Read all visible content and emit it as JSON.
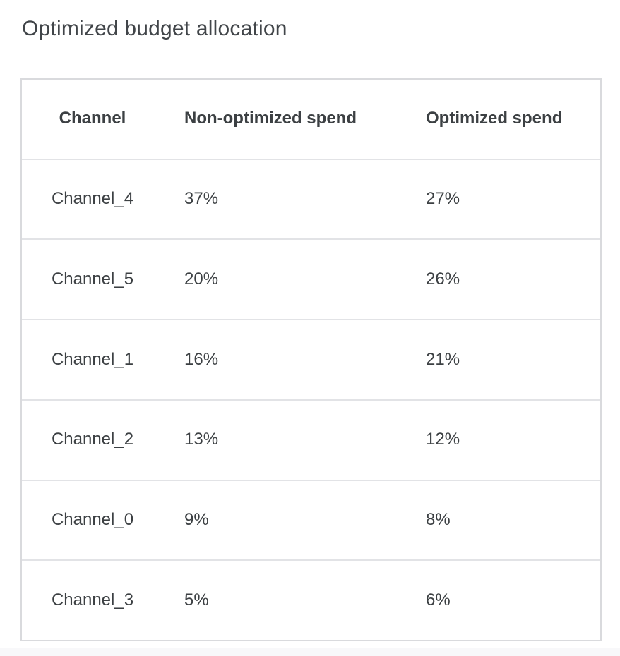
{
  "page": {
    "title": "Optimized budget allocation"
  },
  "table": {
    "columns": [
      {
        "label": "Channel",
        "align": "center"
      },
      {
        "label": "Non-optimized spend",
        "align": "left"
      },
      {
        "label": "Optimized spend",
        "align": "left"
      }
    ],
    "rows": [
      {
        "channel": "Channel_4",
        "non_optimized_spend": "37%",
        "optimized_spend": "27%"
      },
      {
        "channel": "Channel_5",
        "non_optimized_spend": "20%",
        "optimized_spend": "26%"
      },
      {
        "channel": "Channel_1",
        "non_optimized_spend": "16%",
        "optimized_spend": "21%"
      },
      {
        "channel": "Channel_2",
        "non_optimized_spend": "13%",
        "optimized_spend": "12%"
      },
      {
        "channel": "Channel_0",
        "non_optimized_spend": "9%",
        "optimized_spend": "8%"
      },
      {
        "channel": "Channel_3",
        "non_optimized_spend": "5%",
        "optimized_spend": "6%"
      }
    ]
  },
  "colors": {
    "title_text": "#414549",
    "body_text": "#3c4043",
    "table_border": "#d9dadd",
    "row_divider": "#e2e3e6",
    "background": "#ffffff",
    "bottom_strip": "#f8f8fa"
  }
}
